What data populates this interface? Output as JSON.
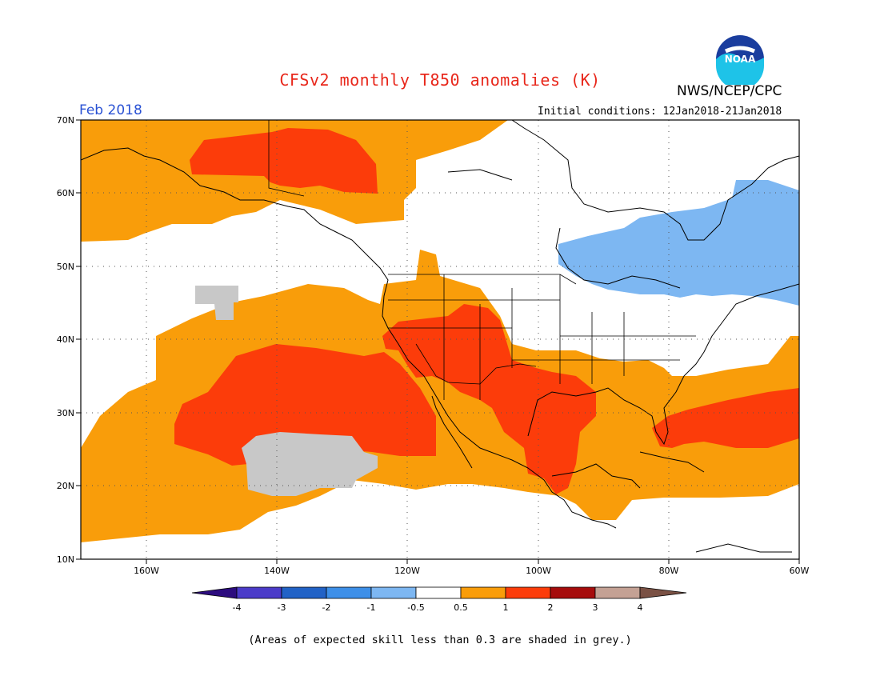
{
  "header": {
    "title": "CFSv2 monthly T850 anomalies (K)",
    "agency": "NWS/NCEP/CPC",
    "logo_text": "NOAA",
    "month": "Feb 2018",
    "initial_conditions": "Initial conditions: 12Jan2018-21Jan2018"
  },
  "map": {
    "lat_labels": [
      "70N",
      "60N",
      "50N",
      "40N",
      "30N",
      "20N",
      "10N"
    ],
    "lon_labels": [
      "160W",
      "140W",
      "120W",
      "100W",
      "80W",
      "60W"
    ],
    "grid": "dotted"
  },
  "legend": {
    "labels": [
      "-4",
      "-3",
      "-2",
      "-1",
      "-0.5",
      "0.5",
      "1",
      "2",
      "3",
      "4"
    ],
    "colors": {
      "lt-4": "#2c0c7e",
      "-4_-3": "#4b3bc9",
      "-3_-2": "#2162c6",
      "-2_-1": "#3d8fe8",
      "-1_-0.5": "#7db7f2",
      "-0.5_0.5": "#ffffff",
      "0.5_1": "#f99d0a",
      "1_2": "#fc3c0a",
      "2_3": "#a60c0c",
      "3_4": "#c4a194",
      "gt4": "#7a5144"
    }
  },
  "footnote": "(Areas of expected skill less than 0.3 are shaded in grey.)"
}
